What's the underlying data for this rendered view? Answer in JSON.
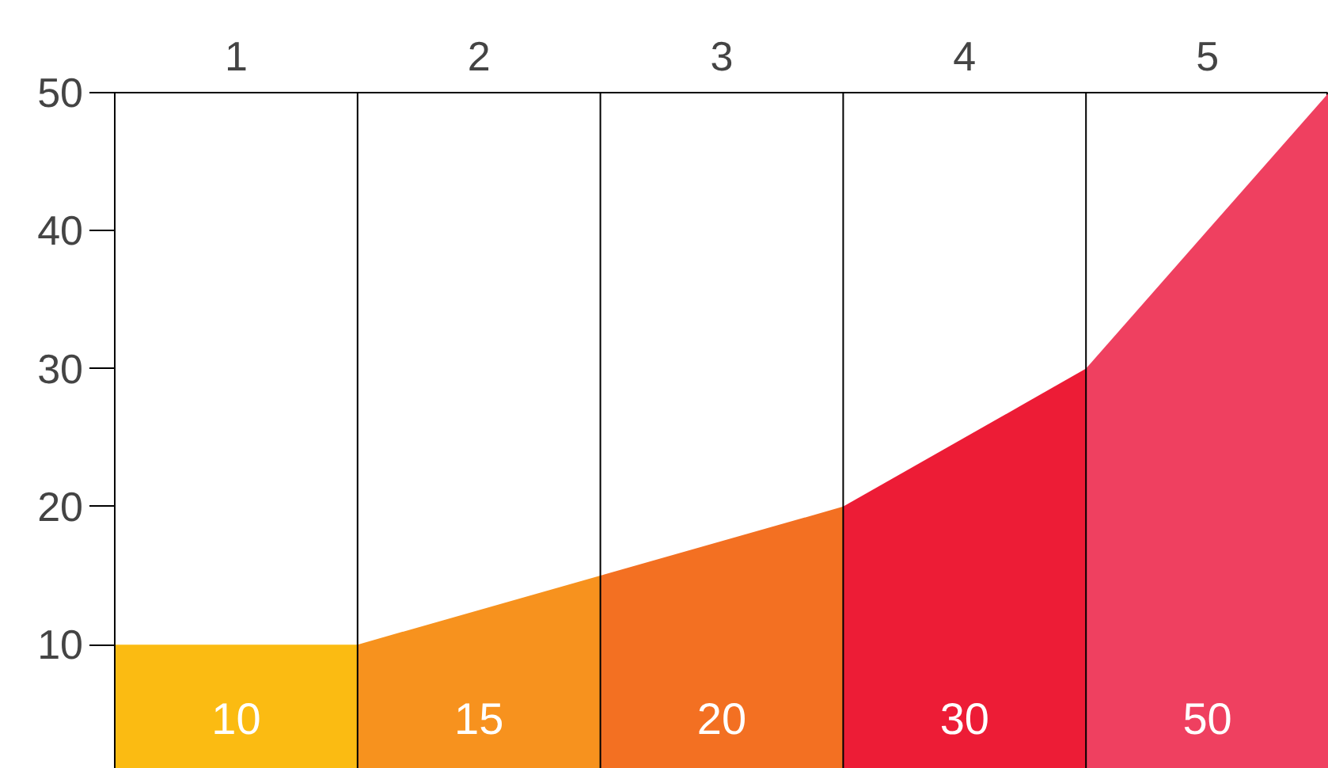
{
  "chart_data": {
    "type": "area",
    "xlim": [
      0,
      5
    ],
    "ylim": [
      1,
      50
    ],
    "xticks": [
      {
        "value": 0.5,
        "label": "1"
      },
      {
        "value": 1.5,
        "label": "2"
      },
      {
        "value": 2.5,
        "label": "3"
      },
      {
        "value": 3.5,
        "label": "4"
      },
      {
        "value": 4.5,
        "label": "5"
      }
    ],
    "yticks": [
      10,
      20,
      30,
      40,
      50
    ],
    "series": [
      {
        "color": "#fbbb12",
        "x": [
          0,
          1
        ],
        "values": [
          10,
          10
        ]
      },
      {
        "color": "#f7921e",
        "x": [
          1,
          2
        ],
        "values": [
          10,
          15
        ]
      },
      {
        "color": "#f37022",
        "x": [
          2,
          3
        ],
        "values": [
          15,
          20
        ]
      },
      {
        "color": "#ed1c36",
        "x": [
          3,
          4
        ],
        "values": [
          20,
          30
        ]
      },
      {
        "color": "#ef4060",
        "x": [
          4,
          5
        ],
        "values": [
          30,
          50
        ]
      }
    ],
    "annotations": [
      "10",
      "15",
      "20",
      "30",
      "50"
    ]
  }
}
